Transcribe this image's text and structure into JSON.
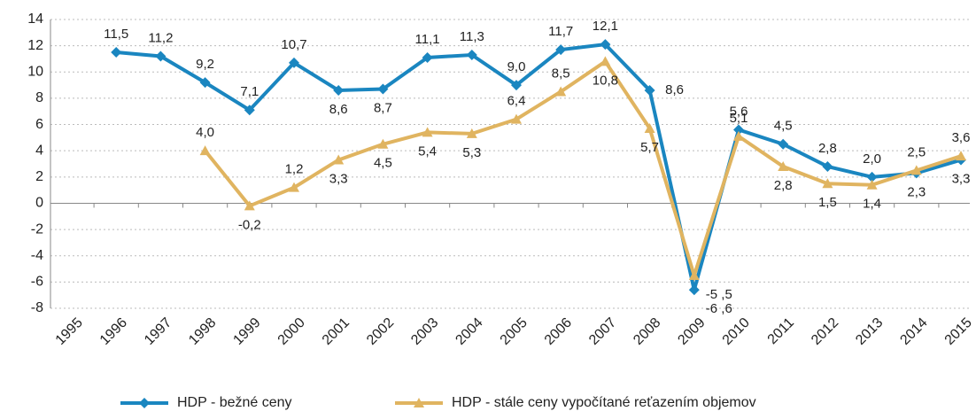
{
  "chart_data": {
    "type": "line",
    "categories": [
      "1995",
      "1996",
      "1997",
      "1998",
      "1999",
      "2000",
      "2001",
      "2002",
      "2003",
      "2004",
      "2005",
      "2006",
      "2007",
      "2008",
      "2009",
      "2010",
      "2011",
      "2012",
      "2013",
      "2014",
      "2015"
    ],
    "series": [
      {
        "name": "HDP - bežné ceny",
        "color": "#1a86c0",
        "values": [
          null,
          11.5,
          11.2,
          9.2,
          7.1,
          10.7,
          8.6,
          8.7,
          11.1,
          11.3,
          9.0,
          11.7,
          12.1,
          8.6,
          -6.6,
          5.6,
          4.5,
          2.8,
          2.0,
          2.3,
          3.3
        ],
        "value_labels": [
          null,
          "11,5",
          "11,2",
          "9,2",
          "7,1",
          "10,7",
          "8,6",
          "8,7",
          "11,1",
          "11,3",
          "9,0",
          "11,7",
          "12,1",
          "8,6",
          "-6 ,6",
          "5,6",
          "4,5",
          "2,8",
          "2,0",
          "2,3",
          "3,3"
        ]
      },
      {
        "name": "HDP - stále ceny vypočítané reťazením objemov",
        "color": "#e0b460",
        "values": [
          null,
          null,
          null,
          4.0,
          -0.2,
          1.2,
          3.3,
          4.5,
          5.4,
          5.3,
          6.4,
          8.5,
          10.8,
          5.7,
          -5.5,
          5.1,
          2.8,
          1.5,
          1.4,
          2.5,
          3.6
        ],
        "value_labels": [
          null,
          null,
          null,
          "4,0",
          "-0,2",
          "1,2",
          "3,3",
          "4,5",
          "5,4",
          "5,3",
          "6,4",
          "8,5",
          "10,8",
          "5,7",
          "-5 ,5",
          "5,1",
          "2,8",
          "1,5",
          "1,4",
          "2,5",
          "3,6"
        ]
      }
    ],
    "ylim": [
      -8,
      14
    ],
    "yticks": [
      -8,
      -6,
      -4,
      -2,
      0,
      2,
      4,
      6,
      8,
      10,
      12,
      14
    ],
    "grid": true,
    "legend": "bottom"
  }
}
